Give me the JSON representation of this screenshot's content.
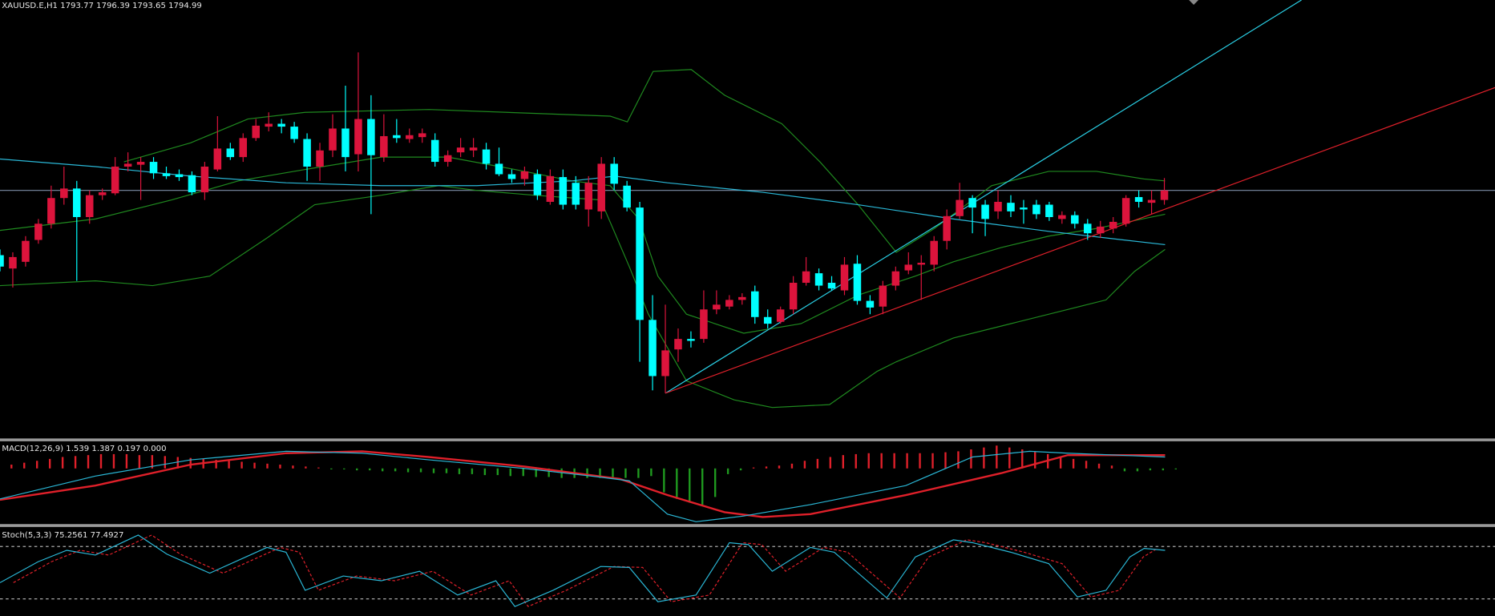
{
  "header": {
    "title": "XAUUSD.E,H1  1793.77 1796.39 1793.65 1794.99"
  },
  "macd": {
    "label": "MACD(12,26,9) 1.539 1.387 0.197 0.000"
  },
  "stoch": {
    "label": "Stoch(5,3,3) 75.2561 77.4927"
  }
}
